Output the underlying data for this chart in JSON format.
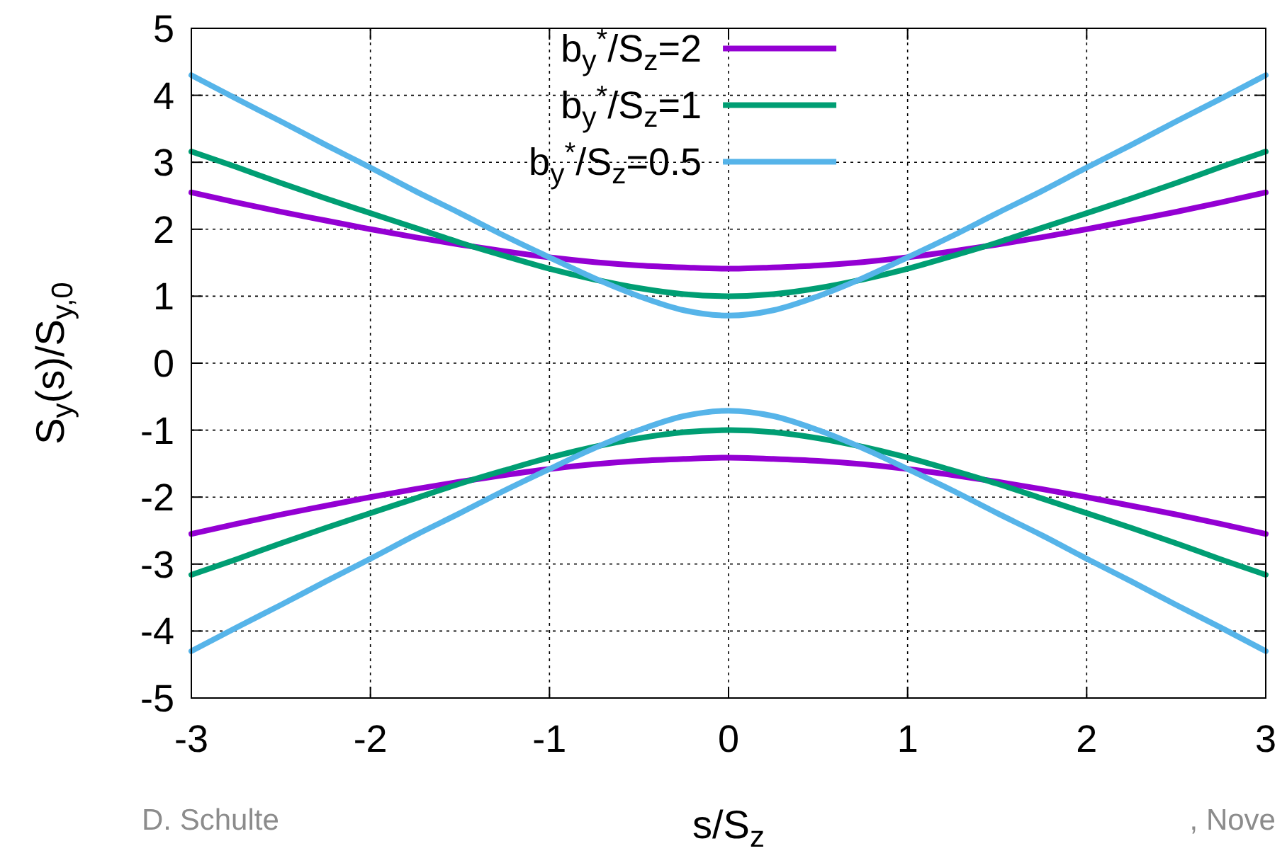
{
  "chart_data": {
    "type": "line",
    "xlabel": "s/S$_{z}$",
    "ylabel": "S$_{y}$(s)/S$_{y,0}$",
    "x": [
      -3,
      -2.75,
      -2.5,
      -2.25,
      -2,
      -1.75,
      -1.5,
      -1.25,
      -1,
      -0.75,
      -0.5,
      -0.25,
      0,
      0.25,
      0.5,
      0.75,
      1,
      1.25,
      1.5,
      1.75,
      2,
      2.25,
      2.5,
      2.75,
      3
    ],
    "series": [
      {
        "name": "b$_{y}$$^{*}$/S$_{z}$=2",
        "color": "#9400d3",
        "values": [
          2.55,
          2.4,
          2.26,
          2.13,
          2,
          1.88,
          1.77,
          1.67,
          1.58,
          1.51,
          1.46,
          1.43,
          1.41,
          1.43,
          1.46,
          1.51,
          1.58,
          1.67,
          1.77,
          1.88,
          2,
          2.13,
          2.26,
          2.4,
          2.55
        ]
      },
      {
        "name": "b$_{y}$$^{*}$/S$_{z}$=1",
        "color": "#009e73",
        "values": [
          3.16,
          2.93,
          2.69,
          2.46,
          2.24,
          2.02,
          1.8,
          1.6,
          1.41,
          1.25,
          1.12,
          1.03,
          1,
          1.03,
          1.12,
          1.25,
          1.41,
          1.6,
          1.8,
          2.02,
          2.24,
          2.46,
          2.69,
          2.93,
          3.16
        ]
      },
      {
        "name": "b$_{y}$$^{*}$/S$_{z}$=0.5",
        "color": "#56b4e9",
        "values": [
          4.3,
          3.95,
          3.61,
          3.26,
          2.92,
          2.57,
          2.24,
          1.9,
          1.58,
          1.27,
          1,
          0.79,
          0.71,
          0.79,
          1,
          1.27,
          1.58,
          1.9,
          2.24,
          2.57,
          2.92,
          3.26,
          3.61,
          3.95,
          4.3
        ]
      },
      {
        "color": "#9400d3",
        "values": [
          -2.55,
          -2.4,
          -2.26,
          -2.13,
          -2,
          -1.88,
          -1.77,
          -1.67,
          -1.58,
          -1.51,
          -1.46,
          -1.43,
          -1.41,
          -1.43,
          -1.46,
          -1.51,
          -1.58,
          -1.67,
          -1.77,
          -1.88,
          -2,
          -2.13,
          -2.26,
          -2.4,
          -2.55
        ]
      },
      {
        "color": "#009e73",
        "values": [
          -3.16,
          -2.93,
          -2.69,
          -2.46,
          -2.24,
          -2.02,
          -1.8,
          -1.6,
          -1.41,
          -1.25,
          -1.12,
          -1.03,
          -1,
          -1.03,
          -1.12,
          -1.25,
          -1.41,
          -1.6,
          -1.8,
          -2.02,
          -2.24,
          -2.46,
          -2.69,
          -2.93,
          -3.16
        ]
      },
      {
        "color": "#56b4e9",
        "values": [
          -4.3,
          -3.95,
          -3.61,
          -3.26,
          -2.92,
          -2.57,
          -2.24,
          -1.9,
          -1.58,
          -1.27,
          -1,
          -0.79,
          -0.71,
          -0.79,
          -1,
          -1.27,
          -1.58,
          -1.9,
          -2.24,
          -2.57,
          -2.92,
          -3.26,
          -3.61,
          -3.95,
          -4.3
        ]
      }
    ],
    "xlim": [
      -3,
      3
    ],
    "xticks": [
      -3,
      -2,
      -1,
      0,
      1,
      2,
      3
    ],
    "ylim": [
      -5,
      5
    ],
    "yticks": [
      -5,
      -4,
      -3,
      -2,
      -1,
      0,
      1,
      2,
      3,
      4,
      5
    ],
    "grid": true,
    "legend": "top",
    "line_style": "solid",
    "annotations": [
      "D. Schulte",
      ", Nove"
    ]
  }
}
